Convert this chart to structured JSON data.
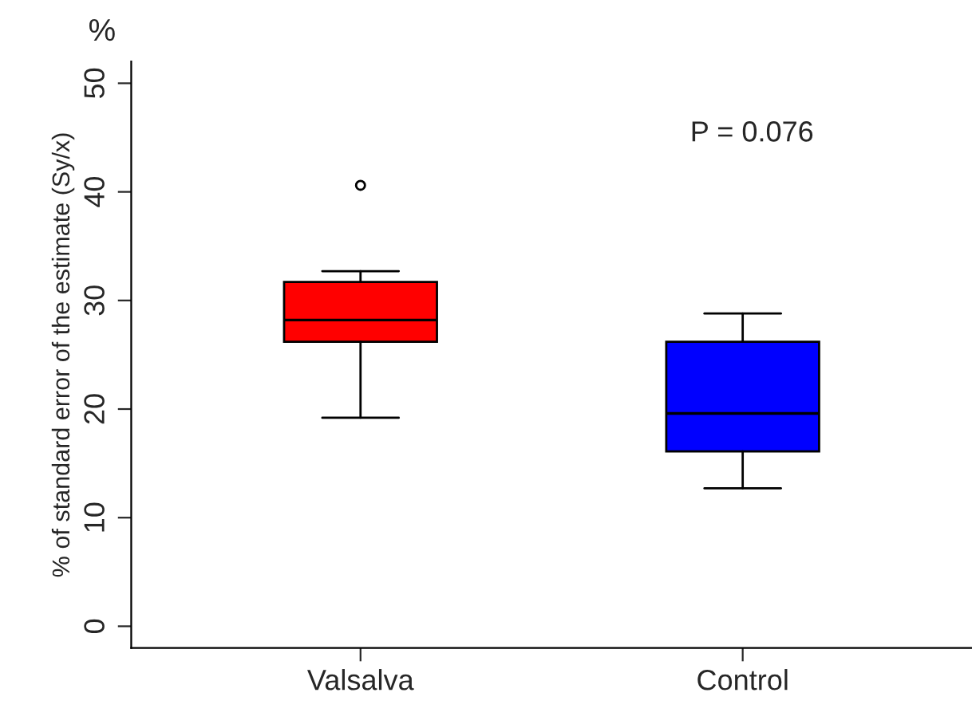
{
  "chart_data": {
    "type": "box",
    "ylabel": "% of standard error of the estimate (Sy/x)",
    "categories": [
      "Valsalva",
      "Control"
    ],
    "colors": [
      "#ff0000",
      "#0000ff"
    ],
    "boxes": [
      {
        "low": 19.2,
        "q1": 26.2,
        "median": 28.2,
        "q3": 31.7,
        "high": 32.7,
        "outliers": [
          40.6
        ]
      },
      {
        "low": 12.7,
        "q1": 16.1,
        "median": 19.6,
        "q3": 26.2,
        "high": 28.8
      }
    ],
    "ylim": [
      -2,
      52
    ],
    "yticks": [
      0,
      10,
      20,
      30,
      40,
      50
    ],
    "annotations": [
      "%",
      "P = 0.076"
    ],
    "grid": false,
    "legend": false
  }
}
